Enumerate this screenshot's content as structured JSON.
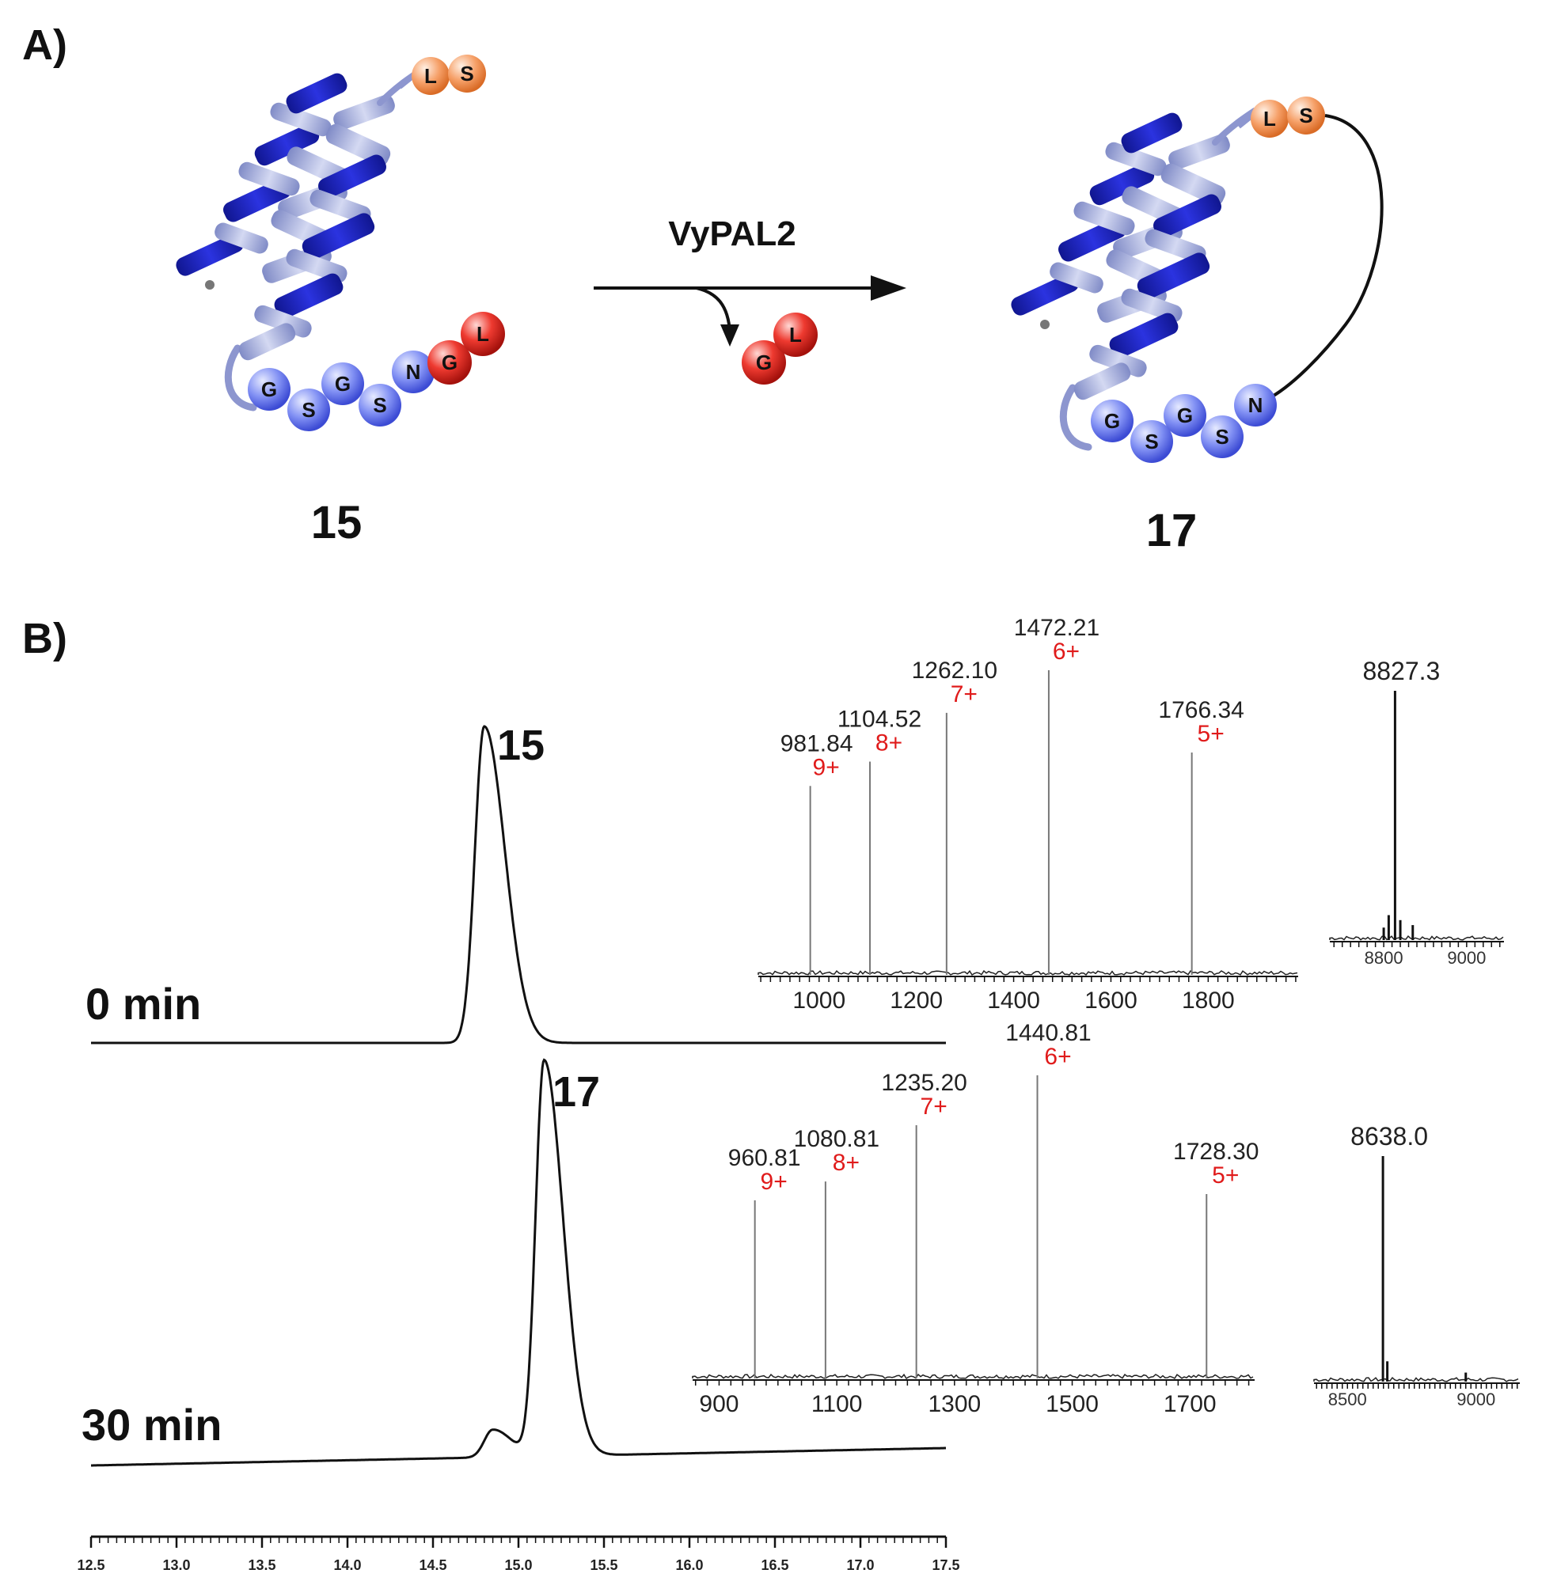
{
  "panel_a": {
    "label": "A)",
    "enzyme": "VyPAL2",
    "substrate": {
      "label": "15",
      "tail_residues": [
        "L",
        "S"
      ],
      "chain_residues": [
        "G",
        "S",
        "G",
        "S",
        "N"
      ],
      "leaving_residues": [
        "G",
        "L"
      ]
    },
    "released": [
      "G",
      "L"
    ],
    "product": {
      "label": "17",
      "tail_residues": [
        "L",
        "S"
      ],
      "chain_residues": [
        "G",
        "S",
        "G",
        "S",
        "N"
      ]
    }
  },
  "panel_b": {
    "label": "B)"
  },
  "colors": {
    "helix_dark": "#1f25c8",
    "helix_light": "#a3aede",
    "bead_blue": "#6f7ef0",
    "bead_red": "#e3261f",
    "bead_orange": "#f28a45",
    "charge_red": "#e01b1b"
  },
  "chart_data": [
    {
      "type": "line",
      "name": "hplc",
      "xlim": [
        12.5,
        17.5
      ],
      "xticks": [
        "12.5",
        "13.0",
        "13.5",
        "14.0",
        "14.5",
        "15.0",
        "15.5",
        "16.0",
        "16.5",
        "17.0",
        "17.5"
      ],
      "traces": [
        {
          "time_label": "0 min",
          "peak_label": "15",
          "peaks": [
            {
              "x": 14.8,
              "h": 1.0,
              "w": 0.055
            }
          ]
        },
        {
          "time_label": "30 min",
          "peak_label": "17",
          "peaks": [
            {
              "x": 15.15,
              "h": 1.0,
              "w": 0.05
            },
            {
              "x": 14.85,
              "h": 0.07,
              "w": 0.05
            }
          ]
        }
      ]
    },
    {
      "type": "bar",
      "name": "esi-ms-15",
      "xlim": [
        875,
        1985
      ],
      "xticks": [
        "1000",
        "1200",
        "1400",
        "1600",
        "1800"
      ],
      "peaks": [
        {
          "mz": 981.84,
          "mz_label": "981.84",
          "charge": "9+",
          "rel": 0.62
        },
        {
          "mz": 1104.52,
          "mz_label": "1104.52",
          "charge": "8+",
          "rel": 0.7
        },
        {
          "mz": 1262.1,
          "mz_label": "1262.10",
          "charge": "7+",
          "rel": 0.86
        },
        {
          "mz": 1472.21,
          "mz_label": "1472.21",
          "charge": "6+",
          "rel": 1.0
        },
        {
          "mz": 1766.34,
          "mz_label": "1766.34",
          "charge": "5+",
          "rel": 0.73
        }
      ]
    },
    {
      "type": "bar",
      "name": "deconvoluted-15",
      "xlim": [
        8670,
        9090
      ],
      "xticks": [
        "8800",
        "9000"
      ],
      "main_label": "8827.3",
      "peaks": [
        {
          "mz": 8827.3,
          "rel": 1.0
        },
        {
          "mz": 8812,
          "rel": 0.1
        },
        {
          "mz": 8840,
          "rel": 0.08
        },
        {
          "mz": 8870,
          "rel": 0.06
        },
        {
          "mz": 8800,
          "rel": 0.05
        }
      ]
    },
    {
      "type": "bar",
      "name": "esi-ms-17",
      "xlim": [
        855,
        1810
      ],
      "xticks": [
        "900",
        "1100",
        "1300",
        "1500",
        "1700"
      ],
      "peaks": [
        {
          "mz": 960.81,
          "mz_label": "960.81",
          "charge": "9+",
          "rel": 0.57
        },
        {
          "mz": 1080.81,
          "mz_label": "1080.81",
          "charge": "8+",
          "rel": 0.63
        },
        {
          "mz": 1235.2,
          "mz_label": "1235.20",
          "charge": "7+",
          "rel": 0.81
        },
        {
          "mz": 1440.81,
          "mz_label": "1440.81",
          "charge": "6+",
          "rel": 0.97
        },
        {
          "mz": 1728.3,
          "mz_label": "1728.30",
          "charge": "5+",
          "rel": 0.59
        }
      ]
    },
    {
      "type": "bar",
      "name": "deconvoluted-17",
      "xlim": [
        8370,
        9170
      ],
      "xticks": [
        "8500",
        "9000"
      ],
      "main_label": "8638.0",
      "peaks": [
        {
          "mz": 8638.0,
          "rel": 1.0
        },
        {
          "mz": 8655,
          "rel": 0.09
        },
        {
          "mz": 8960,
          "rel": 0.04
        }
      ]
    }
  ]
}
